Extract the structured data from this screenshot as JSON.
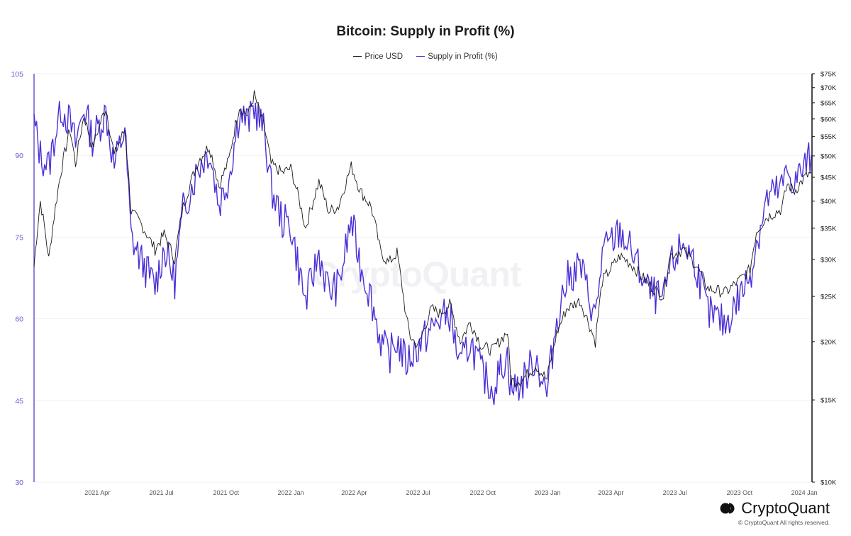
{
  "chart_data": {
    "type": "line",
    "title": "Bitcoin: Supply in Profit (%)",
    "legend": [
      "Price USD",
      "Supply in Profit (%)"
    ],
    "legend_position": "top-center",
    "grid": true,
    "colors": {
      "price": "#1a1a1a",
      "supply": "#4b2fd6",
      "left_axis": "#6a5acd",
      "right_axis": "#111111"
    },
    "x_ticks": [
      "2021 Apr",
      "2021 Jul",
      "2021 Oct",
      "2022 Jan",
      "2022 Apr",
      "2022 Jul",
      "2022 Oct",
      "2023 Jan",
      "2023 Apr",
      "2023 Jul",
      "2023 Oct",
      "2024 Jan"
    ],
    "x_range": [
      "2021-01-01",
      "2024-01-12"
    ],
    "y_left": {
      "ticks": [
        30,
        45,
        60,
        75,
        90,
        105
      ],
      "range": [
        30,
        105
      ]
    },
    "y_right": {
      "scale": "log",
      "range": [
        10000,
        75000
      ],
      "ticks": [
        10000,
        15000,
        20000,
        25000,
        30000,
        35000,
        40000,
        45000,
        50000,
        55000,
        60000,
        65000,
        70000,
        75000
      ],
      "tick_labels": [
        "$10K",
        "$15K",
        "$20K",
        "$25K",
        "$30K",
        "$35K",
        "$40K",
        "$45K",
        "$50K",
        "$55K",
        "$60K",
        "$65K",
        "$70K",
        "$75K"
      ]
    },
    "series": [
      {
        "name": "Price USD",
        "axis": "right",
        "x": [
          "2021-01-01",
          "2021-01-10",
          "2021-01-22",
          "2021-02-08",
          "2021-02-21",
          "2021-03-01",
          "2021-03-13",
          "2021-03-25",
          "2021-04-13",
          "2021-04-25",
          "2021-05-10",
          "2021-05-19",
          "2021-06-01",
          "2021-06-22",
          "2021-07-05",
          "2021-07-20",
          "2021-08-01",
          "2021-08-23",
          "2021-09-07",
          "2021-09-21",
          "2021-10-05",
          "2021-10-20",
          "2021-11-01",
          "2021-11-10",
          "2021-11-25",
          "2021-12-04",
          "2021-12-20",
          "2022-01-01",
          "2022-01-22",
          "2022-02-10",
          "2022-02-24",
          "2022-03-10",
          "2022-03-28",
          "2022-04-10",
          "2022-04-25",
          "2022-05-09",
          "2022-05-20",
          "2022-06-01",
          "2022-06-14",
          "2022-06-20",
          "2022-07-01",
          "2022-07-20",
          "2022-08-01",
          "2022-08-15",
          "2022-08-30",
          "2022-09-13",
          "2022-09-30",
          "2022-10-15",
          "2022-10-30",
          "2022-11-05",
          "2022-11-10",
          "2022-11-25",
          "2022-12-15",
          "2022-12-31",
          "2023-01-14",
          "2023-01-28",
          "2023-02-16",
          "2023-03-10",
          "2023-03-20",
          "2023-04-14",
          "2023-04-28",
          "2023-05-25",
          "2023-06-15",
          "2023-06-23",
          "2023-07-13",
          "2023-07-31",
          "2023-08-17",
          "2023-09-11",
          "2023-09-30",
          "2023-10-16",
          "2023-10-25",
          "2023-11-09",
          "2023-11-30",
          "2023-12-08",
          "2023-12-18",
          "2024-01-02",
          "2024-01-11"
        ],
        "values": [
          29000,
          40000,
          30000,
          46000,
          57000,
          48000,
          61000,
          52000,
          63500,
          50000,
          57000,
          38000,
          36000,
          31500,
          34000,
          30000,
          39000,
          49000,
          52500,
          43000,
          49000,
          64000,
          61000,
          67500,
          57000,
          48000,
          46000,
          47000,
          35000,
          44000,
          38000,
          39000,
          47500,
          42000,
          39000,
          31000,
          29500,
          31000,
          22500,
          20500,
          19500,
          23500,
          23000,
          24000,
          20000,
          22000,
          19500,
          19200,
          20500,
          21000,
          16500,
          16500,
          17800,
          16600,
          20800,
          23500,
          24500,
          20000,
          27000,
          30500,
          29500,
          26500,
          25000,
          30500,
          31500,
          29200,
          26000,
          25500,
          27000,
          28500,
          34500,
          37000,
          38500,
          43500,
          42000,
          45000,
          46000
        ]
      },
      {
        "name": "Supply in Profit (%)",
        "axis": "left",
        "x": [
          "2021-01-01",
          "2021-01-10",
          "2021-01-22",
          "2021-02-08",
          "2021-02-21",
          "2021-03-01",
          "2021-03-13",
          "2021-03-25",
          "2021-04-13",
          "2021-04-25",
          "2021-05-10",
          "2021-05-19",
          "2021-06-01",
          "2021-06-22",
          "2021-07-05",
          "2021-07-20",
          "2021-08-01",
          "2021-08-23",
          "2021-09-07",
          "2021-09-21",
          "2021-10-05",
          "2021-10-20",
          "2021-11-01",
          "2021-11-10",
          "2021-11-25",
          "2021-12-04",
          "2021-12-20",
          "2022-01-01",
          "2022-01-22",
          "2022-02-10",
          "2022-02-24",
          "2022-03-10",
          "2022-03-28",
          "2022-04-10",
          "2022-04-25",
          "2022-05-09",
          "2022-05-20",
          "2022-06-01",
          "2022-06-14",
          "2022-06-20",
          "2022-07-01",
          "2022-07-20",
          "2022-08-01",
          "2022-08-15",
          "2022-08-30",
          "2022-09-13",
          "2022-09-30",
          "2022-10-15",
          "2022-10-30",
          "2022-11-05",
          "2022-11-10",
          "2022-11-25",
          "2022-12-15",
          "2022-12-31",
          "2023-01-14",
          "2023-01-28",
          "2023-02-16",
          "2023-03-10",
          "2023-03-20",
          "2023-04-14",
          "2023-04-28",
          "2023-05-25",
          "2023-06-15",
          "2023-06-23",
          "2023-07-13",
          "2023-07-31",
          "2023-08-17",
          "2023-09-11",
          "2023-09-30",
          "2023-10-16",
          "2023-10-25",
          "2023-11-09",
          "2023-11-30",
          "2023-12-08",
          "2023-12-18",
          "2024-01-02",
          "2024-01-11"
        ],
        "values": [
          96,
          90,
          88,
          99,
          96,
          92,
          99,
          93,
          98,
          88,
          95,
          75,
          71,
          66,
          73,
          67,
          80,
          88,
          91,
          81,
          86,
          98,
          96,
          99,
          94,
          84,
          78,
          77,
          63,
          72,
          65,
          66,
          78,
          70,
          64,
          56,
          53,
          56,
          52,
          53,
          55,
          58,
          60,
          61,
          51,
          56,
          50,
          47,
          52,
          53,
          47,
          48,
          53,
          46,
          60,
          67,
          70,
          60,
          72,
          76,
          73,
          65,
          63,
          69,
          74,
          70,
          61,
          59,
          64,
          68,
          74,
          82,
          84,
          87,
          85,
          88,
          90
        ]
      }
    ]
  },
  "watermark": "CryptoQuant",
  "brand": {
    "name": "CryptoQuant",
    "copyright": "© CryptoQuant All rights reserved."
  }
}
